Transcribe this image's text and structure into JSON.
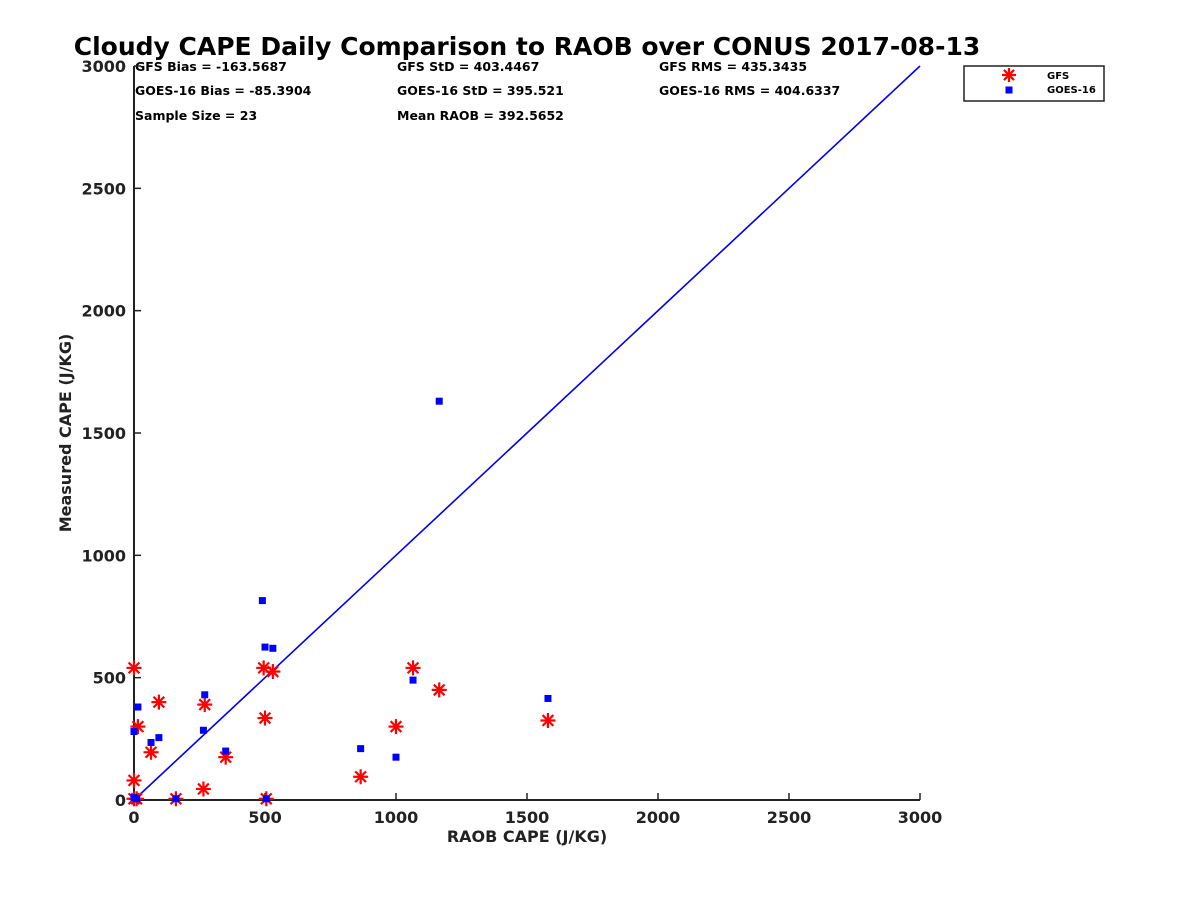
{
  "chart_data": {
    "type": "scatter",
    "title": "Cloudy CAPE Daily Comparison to RAOB over CONUS 2017-08-13",
    "xlabel": "RAOB CAPE (J/KG)",
    "ylabel": "Measured CAPE (J/KG)",
    "xlim": [
      0,
      3000
    ],
    "ylim": [
      0,
      3000
    ],
    "xticks": [
      0,
      500,
      1000,
      1500,
      2000,
      2500,
      3000
    ],
    "yticks": [
      0,
      500,
      1000,
      1500,
      2000,
      2500,
      3000
    ],
    "grid": false,
    "legend_position": "outside top-right",
    "reference_line": {
      "name": "1:1",
      "x": [
        0,
        3000
      ],
      "y": [
        0,
        3000
      ],
      "color": "#0000ee"
    },
    "stats": [
      [
        "GFS Bias = -163.5687",
        "GFS StD = 403.4467",
        "GFS RMS = 435.3435"
      ],
      [
        "GOES-16 Bias = -85.3904",
        "GOES-16 StD = 395.521",
        "GOES-16 RMS = 404.6337"
      ],
      [
        "Sample Size = 23",
        "Mean RAOB = 392.5652",
        ""
      ]
    ],
    "series": [
      {
        "name": "GFS",
        "marker": "asterisk",
        "color": "#ff0000",
        "points": [
          [
            0,
            540
          ],
          [
            0,
            80
          ],
          [
            0,
            5
          ],
          [
            10,
            5
          ],
          [
            15,
            300
          ],
          [
            65,
            195
          ],
          [
            95,
            400
          ],
          [
            160,
            5
          ],
          [
            265,
            45
          ],
          [
            270,
            390
          ],
          [
            350,
            175
          ],
          [
            495,
            540
          ],
          [
            500,
            335
          ],
          [
            505,
            5
          ],
          [
            530,
            525
          ],
          [
            865,
            95
          ],
          [
            1000,
            300
          ],
          [
            1065,
            540
          ],
          [
            1165,
            450
          ],
          [
            1580,
            325
          ]
        ]
      },
      {
        "name": "GOES-16",
        "marker": "square",
        "color": "#0000ff",
        "points": [
          [
            0,
            280
          ],
          [
            0,
            10
          ],
          [
            10,
            5
          ],
          [
            15,
            380
          ],
          [
            65,
            235
          ],
          [
            95,
            255
          ],
          [
            160,
            5
          ],
          [
            265,
            285
          ],
          [
            270,
            430
          ],
          [
            350,
            200
          ],
          [
            490,
            815
          ],
          [
            500,
            625
          ],
          [
            505,
            5
          ],
          [
            530,
            620
          ],
          [
            865,
            210
          ],
          [
            1000,
            175
          ],
          [
            1065,
            490
          ],
          [
            1165,
            1630
          ],
          [
            1580,
            415
          ]
        ]
      }
    ]
  }
}
